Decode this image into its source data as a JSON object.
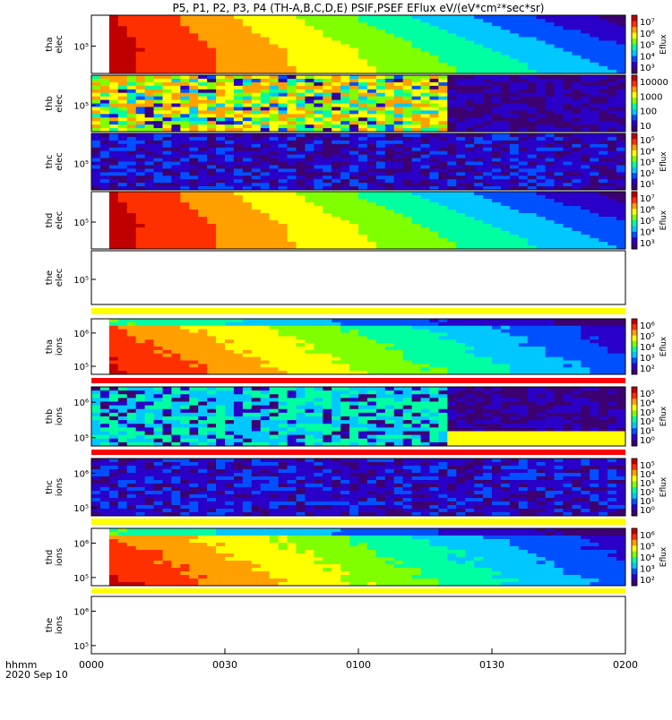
{
  "title": "P5, P1, P2, P3, P4 (TH-A,B,C,D,E) PSIF,PSEF EFlux eV/(eV*cm²*sec*sr)",
  "time_axis": {
    "ticks": [
      "0000",
      "0030",
      "0100",
      "0130",
      "0200"
    ],
    "label_line1": "hhmm",
    "label_line2": "2020 Sep 10"
  },
  "colors": {
    "background": "#ffffff",
    "axis": "#000000",
    "gap_bar_yellow": "#ffff00",
    "gap_bar_red": "#ff0000",
    "spectrogram_scale": [
      "#3d0070",
      "#2a00c8",
      "#0050ff",
      "#00c8ff",
      "#00ffa0",
      "#80ff00",
      "#ffff00",
      "#ffa000",
      "#ff3000",
      "#c00000"
    ]
  },
  "chart_data": [
    {
      "type": "heatmap",
      "probe": "tha",
      "species": "elec",
      "ylabel_line1": "tha",
      "ylabel_line2": "elec",
      "ytick": "10⁵",
      "has_colorbar": true,
      "colorbar_label": "Eflux",
      "colorbar_ticks": [
        "10⁷",
        "10⁶",
        "10⁵",
        "10⁴",
        "10³"
      ],
      "data_start_hhmm": "0005",
      "pattern": "smooth-decay"
    },
    {
      "type": "heatmap",
      "probe": "thb",
      "species": "elec",
      "ylabel_line1": "thb",
      "ylabel_line2": "elec",
      "ytick": "10⁵",
      "has_colorbar": true,
      "colorbar_label": "",
      "colorbar_ticks": [
        "10000",
        "1000",
        "100",
        "10"
      ],
      "data_start_hhmm": "0000",
      "pattern": "noisy-then-low"
    },
    {
      "type": "heatmap",
      "probe": "thc",
      "species": "elec",
      "ylabel_line1": "thc",
      "ylabel_line2": "elec",
      "ytick": "10⁵",
      "has_colorbar": true,
      "colorbar_label": "Eflux",
      "colorbar_ticks": [
        "10⁵",
        "10⁴",
        "10³",
        "10²",
        "10¹"
      ],
      "data_start_hhmm": "0000",
      "pattern": "low-noise"
    },
    {
      "type": "heatmap",
      "probe": "thd",
      "species": "elec",
      "ylabel_line1": "thd",
      "ylabel_line2": "elec",
      "ytick": "10⁵",
      "has_colorbar": true,
      "colorbar_label": "Eflux",
      "colorbar_ticks": [
        "10⁷",
        "10⁶",
        "10⁵",
        "10⁴",
        "10³"
      ],
      "data_start_hhmm": "0005",
      "pattern": "smooth-decay"
    },
    {
      "type": "heatmap",
      "probe": "the",
      "species": "elec",
      "ylabel_line1": "the",
      "ylabel_line2": "elec",
      "ytick": "10⁵",
      "has_colorbar": false,
      "colorbar_label": "",
      "colorbar_ticks": [],
      "data_start_hhmm": "",
      "pattern": "empty"
    },
    {
      "type": "heatmap",
      "probe": "tha",
      "species": "ions",
      "ylabel_line1": "tha",
      "ylabel_line2": "ions",
      "yticks": [
        "10⁶",
        "10⁵"
      ],
      "has_colorbar": true,
      "colorbar_label": "Eflux",
      "colorbar_ticks": [
        "10⁶",
        "10⁵",
        "10⁴",
        "10³",
        "10²"
      ],
      "data_start_hhmm": "0005",
      "pattern": "ion-decay"
    },
    {
      "type": "heatmap",
      "probe": "thb",
      "species": "ions",
      "ylabel_line1": "thb",
      "ylabel_line2": "ions",
      "yticks": [
        "10⁶",
        "10⁵"
      ],
      "has_colorbar": true,
      "colorbar_label": "Eflux",
      "colorbar_ticks": [
        "10⁵",
        "10⁴",
        "10³",
        "10²",
        "10¹",
        "10⁰"
      ],
      "data_start_hhmm": "0000",
      "pattern": "ion-noisy"
    },
    {
      "type": "heatmap",
      "probe": "thc",
      "species": "ions",
      "ylabel_line1": "thc",
      "ylabel_line2": "ions",
      "yticks": [
        "10⁶",
        "10⁵"
      ],
      "has_colorbar": true,
      "colorbar_label": "Eflux",
      "colorbar_ticks": [
        "10⁵",
        "10⁴",
        "10³",
        "10²",
        "10¹",
        "10⁰"
      ],
      "data_start_hhmm": "0000",
      "pattern": "ion-low"
    },
    {
      "type": "heatmap",
      "probe": "thd",
      "species": "ions",
      "ylabel_line1": "thd",
      "ylabel_line2": "ions",
      "yticks": [
        "10⁶",
        "10⁵"
      ],
      "has_colorbar": true,
      "colorbar_label": "Eflux",
      "colorbar_ticks": [
        "10⁶",
        "10⁵",
        "10⁴",
        "10³",
        "10²"
      ],
      "data_start_hhmm": "0005",
      "pattern": "ion-decay"
    },
    {
      "type": "heatmap",
      "probe": "the",
      "species": "ions",
      "ylabel_line1": "the",
      "ylabel_line2": "ions",
      "yticks": [
        "10⁶",
        "10⁵"
      ],
      "has_colorbar": false,
      "colorbar_label": "",
      "colorbar_ticks": [],
      "data_start_hhmm": "",
      "pattern": "empty"
    }
  ]
}
